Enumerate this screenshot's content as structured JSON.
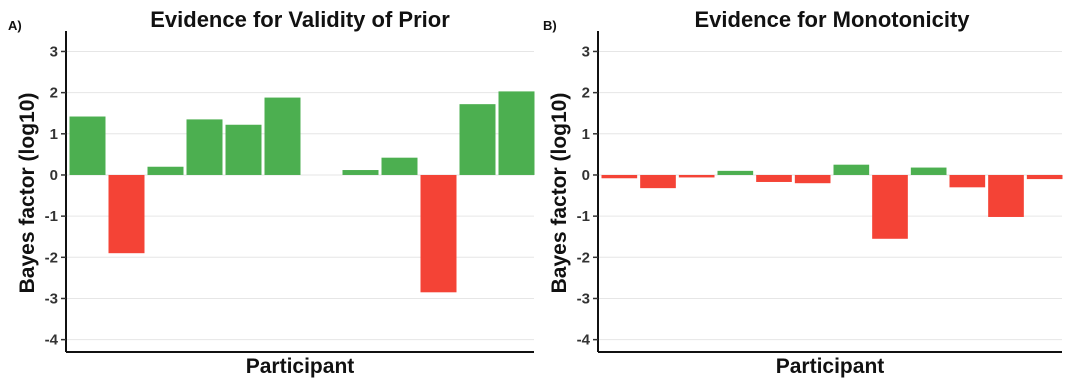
{
  "chart_data": [
    {
      "type": "bar",
      "panel_label": "A)",
      "title": "Evidence for Validity of Prior",
      "xlabel": "Participant",
      "ylabel": "Bayes factor (log10)",
      "ylim": [
        -4.3,
        3.4
      ],
      "yticks": [
        3,
        2,
        1,
        0,
        -1,
        -2,
        -3,
        -4
      ],
      "grid": true,
      "legend": "none",
      "colors": {
        "positive": "#4caf50",
        "negative": "#f44336"
      },
      "values": [
        1.42,
        -1.9,
        0.2,
        1.35,
        1.22,
        1.88,
        0,
        0.12,
        0.42,
        -2.85,
        1.72,
        2.03
      ]
    },
    {
      "type": "bar",
      "panel_label": "B)",
      "title": "Evidence for Monotonicity",
      "xlabel": "Participant",
      "ylabel": "Bayes factor (log10)",
      "ylim": [
        -4.3,
        3.4
      ],
      "yticks": [
        3,
        2,
        1,
        0,
        -1,
        -2,
        -3,
        -4
      ],
      "grid": true,
      "legend": "none",
      "colors": {
        "positive": "#4caf50",
        "negative": "#f44336"
      },
      "values": [
        -0.08,
        -0.32,
        -0.06,
        0.1,
        -0.17,
        -0.2,
        0.25,
        -1.55,
        0.18,
        -0.3,
        -1.02,
        -0.1
      ]
    }
  ]
}
